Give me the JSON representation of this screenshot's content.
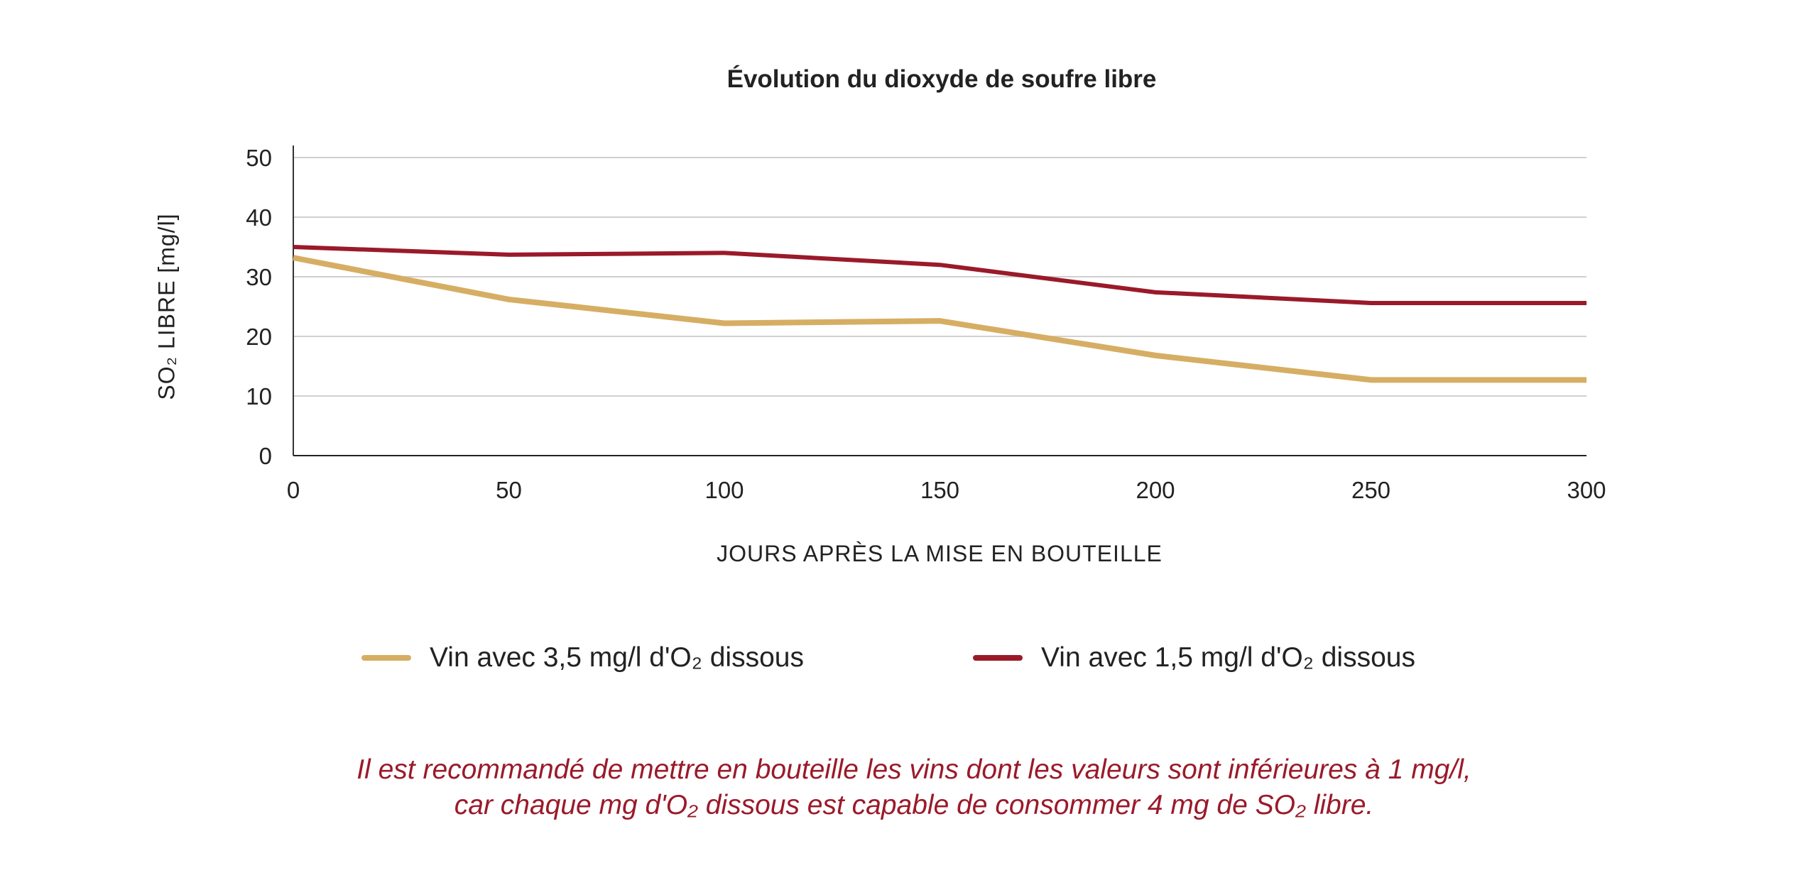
{
  "chart_data": {
    "type": "line",
    "title": "Évolution du dioxyde de soufre libre",
    "xlabel": "JOURS APRÈS LA MISE EN BOUTEILLE",
    "ylabel": "SO₂ LIBRE [mg/l]",
    "x": [
      0,
      50,
      100,
      150,
      200,
      250,
      300
    ],
    "xlim": [
      0,
      300
    ],
    "ylim": [
      0,
      50
    ],
    "xticks": [
      "0",
      "50",
      "100",
      "150",
      "200",
      "250",
      "300"
    ],
    "yticks": [
      "0",
      "10",
      "20",
      "30",
      "40",
      "50"
    ],
    "grid": "horizontal",
    "legend_position": "bottom",
    "series": [
      {
        "name": "Vin avec 3,5 mg/l d'O₂ dissous",
        "color": "#d6ae63",
        "values": [
          33.2,
          26.2,
          22.2,
          22.6,
          16.8,
          12.7,
          12.7
        ]
      },
      {
        "name": "Vin avec 1,5 mg/l d'O₂ dissous",
        "color": "#9a1a2a",
        "values": [
          35.0,
          33.7,
          34.0,
          32.0,
          27.4,
          25.6,
          25.6
        ]
      }
    ]
  },
  "note": {
    "line1": "Il est recommandé de mettre en bouteille les vins dont les valeurs sont inférieures à 1 mg/l,",
    "line2": "car chaque mg d'O₂ dissous est capable de consommer 4 mg de SO₂ libre."
  }
}
